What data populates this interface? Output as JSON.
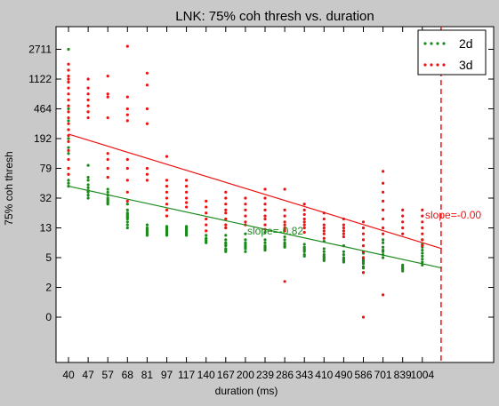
{
  "chart_data": {
    "type": "scatter",
    "title": "LNK: 75% coh thresh vs. duration",
    "xlabel": "duration (ms)",
    "ylabel": "75% coh thresh",
    "x_tick_labels": [
      "40",
      "47",
      "57",
      "68",
      "81",
      "97",
      "117",
      "140",
      "167",
      "200",
      "239",
      "286",
      "343",
      "410",
      "490",
      "586",
      "701",
      "839",
      "1004"
    ],
    "y_tick_labels": [
      "0",
      "2",
      "5",
      "13",
      "32",
      "79",
      "192",
      "464",
      "1122",
      "2711"
    ],
    "x_axis_note": "x positions are tick indices 0–18 (log-spaced durations labeled by tick text)",
    "y_axis_note": "y values are log-scale levels; tick index 0..9 correspond to labels above",
    "legend": {
      "position": "top-right",
      "entries": [
        {
          "name": "2d",
          "color": "#1a8a1a"
        },
        {
          "name": "3d",
          "color": "#ee1111"
        }
      ]
    },
    "series": [
      {
        "name": "2d",
        "color": "#1a8a1a",
        "fit_line": {
          "x_start": 0,
          "y_start": 4.4,
          "x_end": 19,
          "y_end": 1.65
        },
        "slope_label": "slope=-0.82",
        "points": [
          {
            "x": 0,
            "ys": [
              9.0,
              8.3,
              7.9,
              7.0,
              6.6,
              6.3,
              6.0,
              5.7,
              5.5,
              5.0,
              4.8,
              4.6,
              4.5,
              4.4
            ]
          },
          {
            "x": 1,
            "ys": [
              5.1,
              4.7,
              4.6,
              4.45,
              4.35,
              4.25,
              4.2,
              4.1,
              4.0
            ]
          },
          {
            "x": 2,
            "ys": [
              4.7,
              4.3,
              4.2,
              4.1,
              4.0,
              3.95,
              3.9,
              3.85,
              3.8
            ]
          },
          {
            "x": 3,
            "ys": [
              3.8,
              3.6,
              3.5,
              3.45,
              3.4,
              3.35,
              3.3,
              3.2,
              3.1,
              3.0
            ]
          },
          {
            "x": 4,
            "ys": [
              3.1,
              3.0,
              2.95,
              2.9,
              2.85,
              2.8,
              2.75
            ]
          },
          {
            "x": 5,
            "ys": [
              3.05,
              3.0,
              2.95,
              2.9,
              2.85,
              2.8,
              2.75
            ]
          },
          {
            "x": 6,
            "ys": [
              3.05,
              3.0,
              2.95,
              2.9,
              2.85,
              2.8,
              2.75
            ]
          },
          {
            "x": 7,
            "ys": [
              2.75,
              2.65,
              2.6,
              2.55,
              2.5
            ]
          },
          {
            "x": 8,
            "ys": [
              2.75,
              2.6,
              2.5,
              2.45,
              2.4,
              2.3,
              2.25,
              2.2
            ]
          },
          {
            "x": 9,
            "ys": [
              2.8,
              2.6,
              2.5,
              2.45,
              2.4,
              2.35,
              2.3,
              2.2
            ]
          },
          {
            "x": 10,
            "ys": [
              2.85,
              2.6,
              2.5,
              2.4,
              2.35,
              2.3,
              2.25
            ]
          },
          {
            "x": 11,
            "ys": [
              2.95,
              2.7,
              2.6,
              2.5,
              2.45,
              2.4,
              2.35
            ]
          },
          {
            "x": 12,
            "ys": [
              2.45,
              2.35,
              2.3,
              2.25,
              2.2,
              2.1,
              2.05
            ]
          },
          {
            "x": 13,
            "ys": [
              2.55,
              2.3,
              2.2,
              2.1,
              2.05,
              2.0,
              1.95,
              1.9
            ]
          },
          {
            "x": 14,
            "ys": [
              2.4,
              2.2,
              2.1,
              2.0,
              1.95,
              1.9,
              1.85
            ]
          },
          {
            "x": 15,
            "ys": [
              2.15,
              2.0,
              1.95,
              1.9,
              1.85,
              1.8,
              1.7,
              1.65,
              1.5
            ]
          },
          {
            "x": 16,
            "ys": [
              2.6,
              2.5,
              2.35,
              2.25,
              2.2,
              2.1,
              2.0
            ]
          },
          {
            "x": 17,
            "ys": [
              1.75,
              1.7,
              1.65,
              1.6,
              1.55
            ]
          },
          {
            "x": 18,
            "ys": [
              2.6,
              2.45,
              2.35,
              2.25,
              2.15,
              2.05,
              1.95,
              1.85,
              1.75
            ]
          }
        ]
      },
      {
        "name": "3d",
        "color": "#ee1111",
        "fit_line": {
          "x_start": 0,
          "y_start": 6.15,
          "x_end": 19,
          "y_end": 2.3
        },
        "slope_label": "slope=-0.00",
        "points": [
          {
            "x": 0,
            "ys": [
              8.5,
              8.3,
              8.1,
              8.0,
              7.9,
              7.7,
              7.5,
              7.3,
              7.1,
              6.9,
              6.7,
              6.5,
              6.3,
              6.1,
              5.9,
              5.6,
              5.3,
              5.0,
              4.8
            ]
          },
          {
            "x": 1,
            "ys": [
              8.0,
              7.7,
              7.5,
              7.3,
              7.1,
              6.9,
              6.7
            ]
          },
          {
            "x": 2,
            "ys": [
              8.1,
              7.5,
              7.4,
              6.7,
              5.5,
              5.3,
              5.0,
              4.7
            ]
          },
          {
            "x": 3,
            "ys": [
              9.1,
              7.4,
              7.0,
              6.8,
              6.6,
              5.3,
              5.0,
              4.6,
              4.2,
              3.9
            ]
          },
          {
            "x": 4,
            "ys": [
              8.2,
              7.8,
              7.0,
              6.5,
              5.0,
              4.8,
              4.6
            ]
          },
          {
            "x": 5,
            "ys": [
              5.4,
              4.6,
              4.4,
              4.2,
              4.0,
              3.8,
              3.6,
              3.4
            ]
          },
          {
            "x": 6,
            "ys": [
              4.6,
              4.4,
              4.2,
              4.0,
              3.85,
              3.7
            ]
          },
          {
            "x": 7,
            "ys": [
              3.9,
              3.7,
              3.5,
              3.3,
              3.1,
              2.9
            ]
          },
          {
            "x": 8,
            "ys": [
              4.2,
              4.0,
              3.8,
              3.6,
              3.5,
              3.3,
              3.1,
              3.0
            ]
          },
          {
            "x": 9,
            "ys": [
              4.0,
              3.8,
              3.6,
              3.4,
              3.2,
              3.1
            ]
          },
          {
            "x": 10,
            "ys": [
              4.3,
              4.0,
              3.8,
              3.6,
              3.4,
              3.3,
              3.1,
              2.95
            ]
          },
          {
            "x": 11,
            "ys": [
              4.3,
              3.6,
              3.4,
              3.2,
              3.1,
              3.0,
              2.9,
              1.2
            ]
          },
          {
            "x": 12,
            "ys": [
              3.8,
              3.6,
              3.45,
              3.3,
              3.2,
              3.1,
              3.0,
              2.85
            ]
          },
          {
            "x": 13,
            "ys": [
              3.5,
              3.3,
              3.1,
              3.0,
              2.9,
              2.8,
              2.65
            ]
          },
          {
            "x": 14,
            "ys": [
              3.3,
              3.1,
              3.0,
              2.9,
              2.8,
              2.7
            ]
          },
          {
            "x": 15,
            "ys": [
              3.2,
              3.0,
              2.8,
              2.6,
              2.4,
              2.2,
              2.0,
              1.5,
              0.0
            ]
          },
          {
            "x": 16,
            "ys": [
              4.9,
              4.5,
              4.2,
              3.9,
              3.6,
              3.3,
              3.0,
              2.8,
              0.75
            ]
          },
          {
            "x": 17,
            "ys": [
              3.6,
              3.4,
              3.2,
              3.0,
              2.8
            ]
          },
          {
            "x": 18,
            "ys": [
              3.6,
              3.4,
              3.2,
              3.0,
              2.8,
              2.6,
              2.4
            ]
          }
        ]
      }
    ],
    "reference_line": {
      "x": 19,
      "style": "dashed",
      "color": "#ee1111"
    },
    "grid": false
  }
}
